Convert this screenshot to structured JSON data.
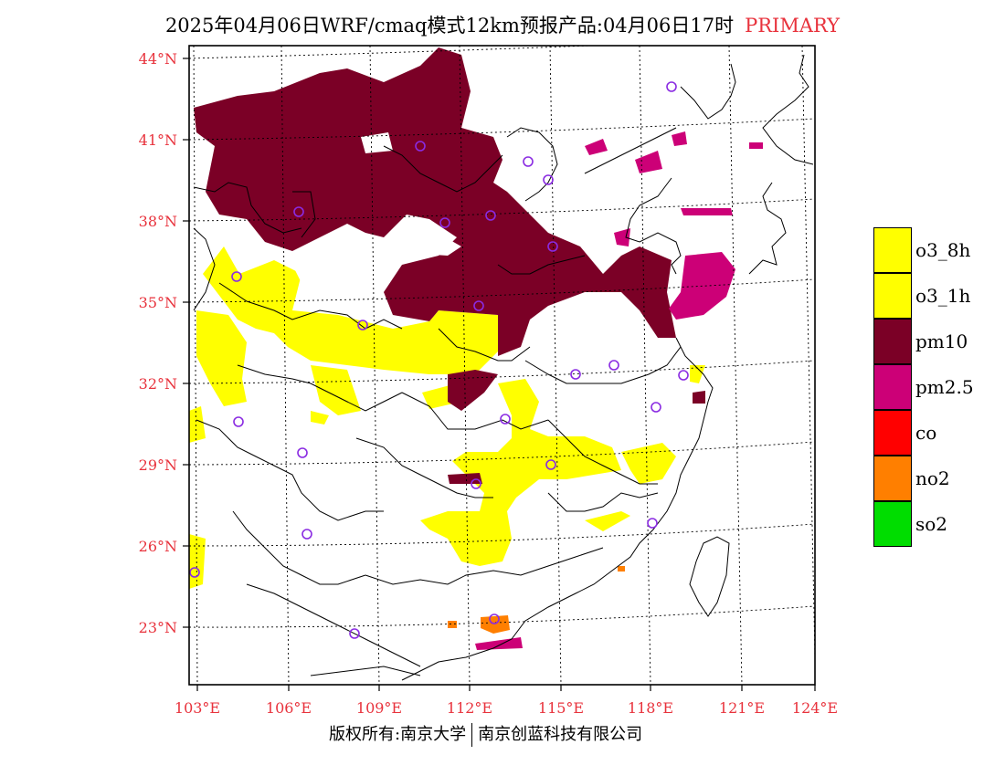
{
  "title": "2025年04月06日WRF/cmaq模式12km预报产品:04月06日17时",
  "title_tag": "PRIMARY",
  "lat_labels": [
    "44°N",
    "41°N",
    "38°N",
    "35°N",
    "32°N",
    "29°N",
    "26°N",
    "23°N"
  ],
  "lon_labels": [
    "103°E",
    "106°E",
    "109°E",
    "112°E",
    "115°E",
    "118°E",
    "121°E",
    "124°E"
  ],
  "legend": [
    {
      "label": "o3_8h",
      "color": "#ffff00"
    },
    {
      "label": "o3_1h",
      "color": "#ffff00"
    },
    {
      "label": "pm10",
      "color": "#7b0026"
    },
    {
      "label": "pm2.5",
      "color": "#cc0077"
    },
    {
      "label": "co",
      "color": "#ff0000"
    },
    {
      "label": "no2",
      "color": "#ff7f00"
    },
    {
      "label": "so2",
      "color": "#00dd00"
    }
  ],
  "copyright": {
    "left": "版权所有:南京大学",
    "right": "南京创蓝科技有限公司"
  },
  "colors": {
    "accent": "#e8323c",
    "o3": "#ffff00",
    "pm10": "#7b0026",
    "pm25": "#cc0077",
    "no2": "#ff7f00",
    "station": "#8a2be2"
  }
}
